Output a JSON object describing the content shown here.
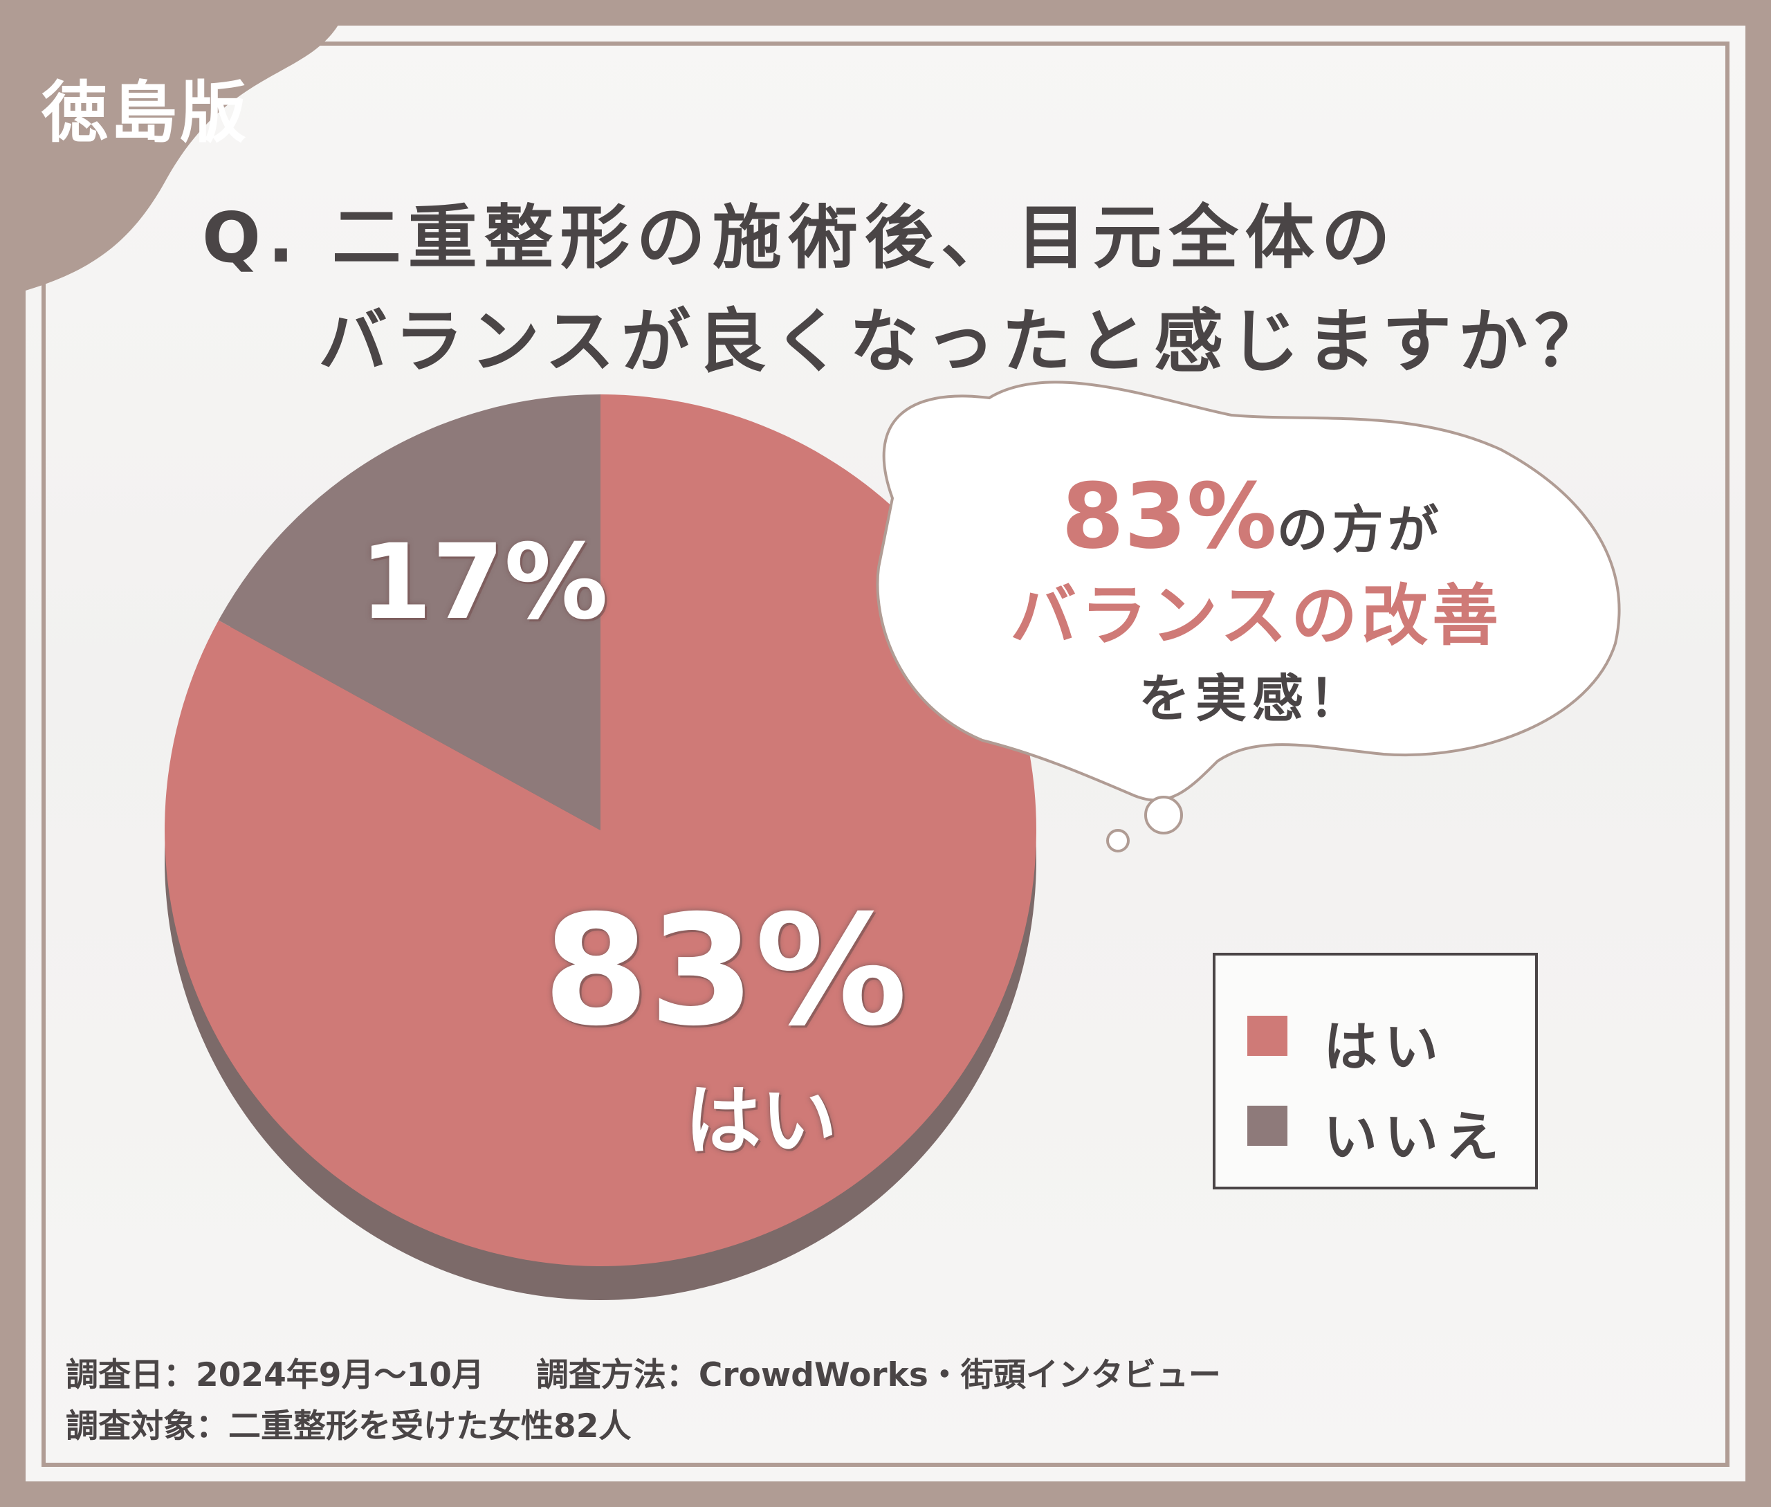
{
  "tag": "徳島版",
  "title": {
    "line1": "Q. 二重整形の施術後、目元全体の",
    "line2": "バランスが良くなったと感じますか？"
  },
  "chart_data": {
    "type": "pie",
    "categories": [
      "はい",
      "いいえ"
    ],
    "values": [
      83,
      17
    ],
    "value_labels": [
      "83%",
      "17%"
    ],
    "slice_label": "はい",
    "colors": [
      "#cf7a77",
      "#8e7a7a"
    ],
    "legend": {
      "placement": "right",
      "entries": [
        "はい",
        "いいえ"
      ]
    }
  },
  "callout": {
    "percent": "83%",
    "line1_suffix": "の方が",
    "line2": "バランスの改善",
    "line3": "を実感！"
  },
  "footer": {
    "date": "調査日：2024年9月～10月",
    "method": "調査方法：CrowdWorks・街頭インタビュー",
    "subjects": "調査対象：二重整形を受けた女性82人"
  }
}
